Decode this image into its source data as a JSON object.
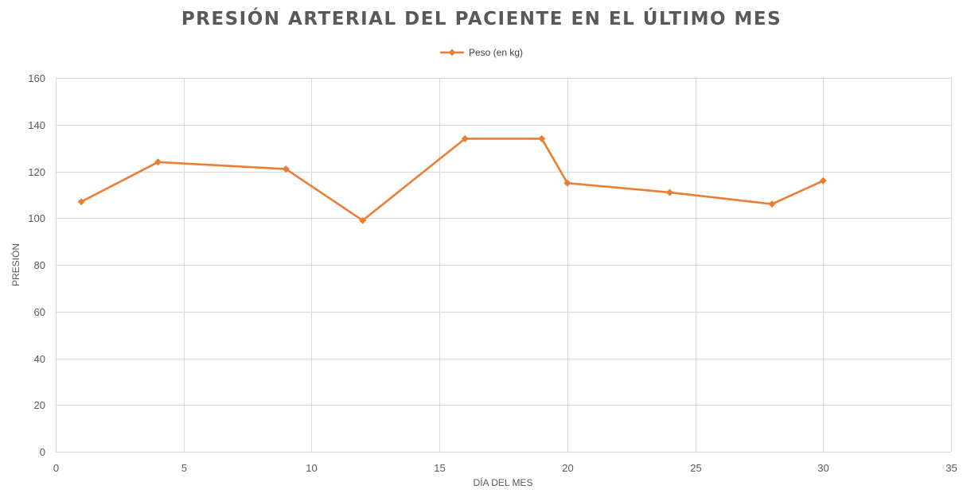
{
  "chart_data": {
    "type": "scatter",
    "title": "PRESIÓN ARTERIAL DEL PACIENTE EN EL ÚLTIMO MES",
    "xlabel": "DÍA DEL MES",
    "ylabel": "PRESIÓN",
    "xlim": [
      0,
      35
    ],
    "ylim": [
      0,
      160
    ],
    "xticks": [
      0,
      5,
      10,
      15,
      20,
      25,
      30,
      35
    ],
    "yticks": [
      0,
      20,
      40,
      60,
      80,
      100,
      120,
      140,
      160
    ],
    "grid": true,
    "legend_position": "top",
    "series": [
      {
        "name": "Peso (en kg)",
        "color": "#ED7D31",
        "marker": "diamond",
        "points": [
          {
            "x": 1,
            "y": 107
          },
          {
            "x": 4,
            "y": 124
          },
          {
            "x": 9,
            "y": 121
          },
          {
            "x": 12,
            "y": 99
          },
          {
            "x": 16,
            "y": 134
          },
          {
            "x": 19,
            "y": 134
          },
          {
            "x": 20,
            "y": 115
          },
          {
            "x": 24,
            "y": 111
          },
          {
            "x": 28,
            "y": 106
          },
          {
            "x": 30,
            "y": 116
          }
        ]
      }
    ]
  }
}
